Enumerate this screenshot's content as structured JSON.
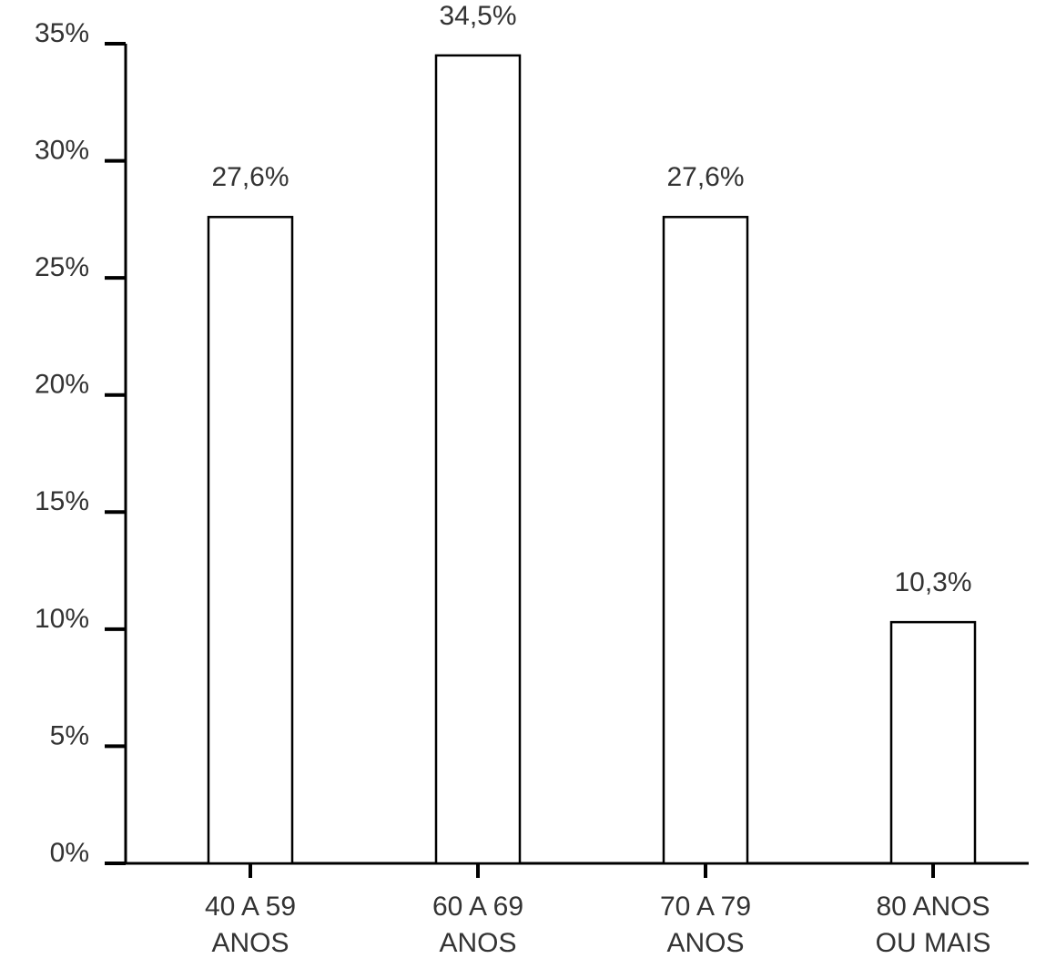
{
  "chart_data": {
    "type": "bar",
    "categories": [
      "40 A 59 ANOS",
      "60 A 69 ANOS",
      "70 A 79 ANOS",
      "80 ANOS OU MAIS"
    ],
    "values": [
      27.6,
      34.5,
      27.6,
      10.3
    ],
    "value_labels": [
      "27,6%",
      "34,5%",
      "27,6%",
      "10,3%"
    ],
    "color": "#ffffff",
    "ylim": [
      0,
      35
    ],
    "yticks": [
      {
        "value": 0,
        "label": "0%"
      },
      {
        "value": 5,
        "label": "5%"
      },
      {
        "value": 10,
        "label": "10%"
      },
      {
        "value": 15,
        "label": "15%"
      },
      {
        "value": 20,
        "label": "20%"
      },
      {
        "value": 25,
        "label": "25%"
      },
      {
        "value": 30,
        "label": "30%"
      },
      {
        "value": 35,
        "label": "35%"
      }
    ],
    "grid": false
  }
}
